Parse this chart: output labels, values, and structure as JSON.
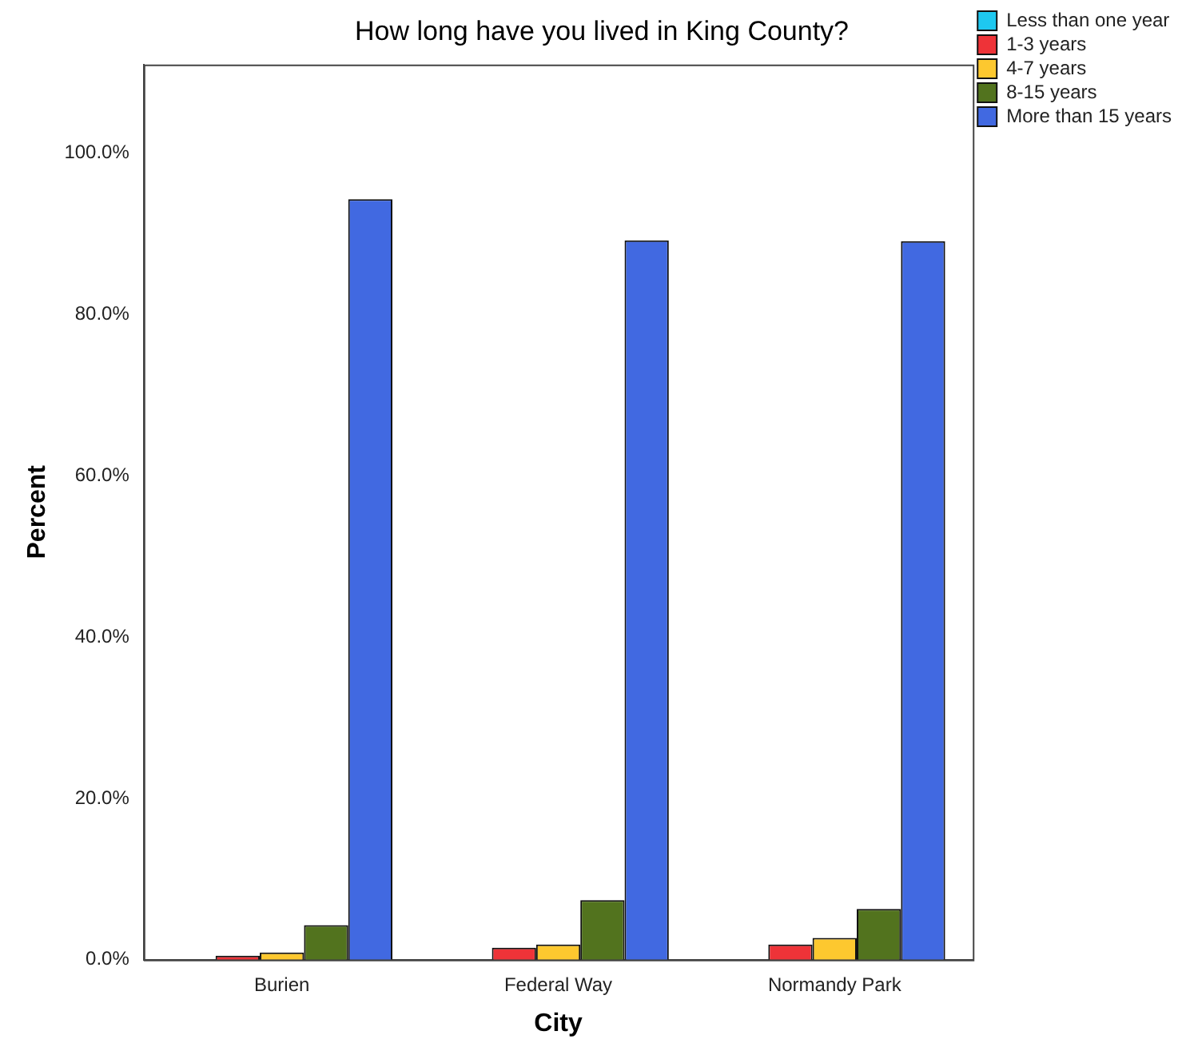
{
  "chart_data": {
    "type": "bar",
    "title": "How long have you lived in King County?",
    "xlabel": "City",
    "ylabel": "Percent",
    "categories": [
      "Burien",
      "Federal Way",
      "Normandy Park"
    ],
    "series": [
      {
        "name": "Less than one year",
        "color": "#1ec8f0",
        "values": [
          0,
          0,
          0
        ]
      },
      {
        "name": "1-3 years",
        "color": "#ee3338",
        "values": [
          0.5,
          1.5,
          1.9
        ]
      },
      {
        "name": "4-7 years",
        "color": "#fdc82f",
        "values": [
          0.9,
          1.9,
          2.7
        ]
      },
      {
        "name": "8-15 years",
        "color": "#52731e",
        "values": [
          4.3,
          7.4,
          6.3
        ]
      },
      {
        "name": "More than 15 years",
        "color": "#4169e1",
        "values": [
          94.3,
          89.2,
          89.1
        ]
      }
    ],
    "ylim": [
      0,
      111
    ],
    "yticks": [
      {
        "value": 0,
        "label": "0.0%"
      },
      {
        "value": 20,
        "label": "20.0%"
      },
      {
        "value": 40,
        "label": "40.0%"
      },
      {
        "value": 60,
        "label": "60.0%"
      },
      {
        "value": 80,
        "label": "80.0%"
      },
      {
        "value": 100,
        "label": "100.0%"
      }
    ],
    "grid": false,
    "legend": "top right"
  }
}
